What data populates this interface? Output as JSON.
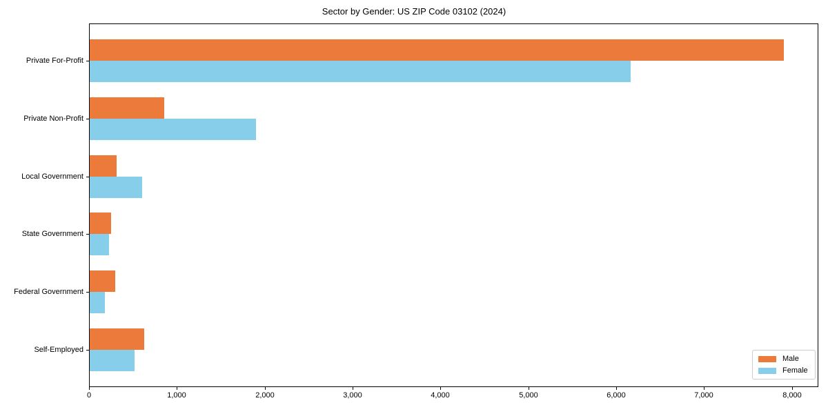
{
  "chart_data": {
    "type": "bar",
    "orientation": "horizontal",
    "title": "Sector by Gender: US ZIP Code 03102 (2024)",
    "categories": [
      "Private For-Profit",
      "Private Non-Profit",
      "Local Government",
      "State Government",
      "Federal Government",
      "Self-Employed"
    ],
    "series": [
      {
        "name": "Male",
        "color": "#eb7a3b",
        "values": [
          7900,
          850,
          310,
          240,
          290,
          620
        ]
      },
      {
        "name": "Female",
        "color": "#87ceeb",
        "values": [
          6160,
          1890,
          600,
          220,
          170,
          510
        ]
      }
    ],
    "xlabel": "",
    "ylabel": "",
    "xlim": [
      0,
      8300
    ],
    "xticks": {
      "values": [
        0,
        1000,
        2000,
        3000,
        4000,
        5000,
        6000,
        7000,
        8000
      ],
      "labels": [
        "0",
        "1,000",
        "2,000",
        "3,000",
        "4,000",
        "5,000",
        "6,000",
        "7,000",
        "8,000"
      ]
    },
    "grid": false,
    "background": "#ffffff",
    "axis_color": "#000000",
    "legend": {
      "position": "lower-right",
      "entries": [
        "Male",
        "Female"
      ]
    }
  }
}
